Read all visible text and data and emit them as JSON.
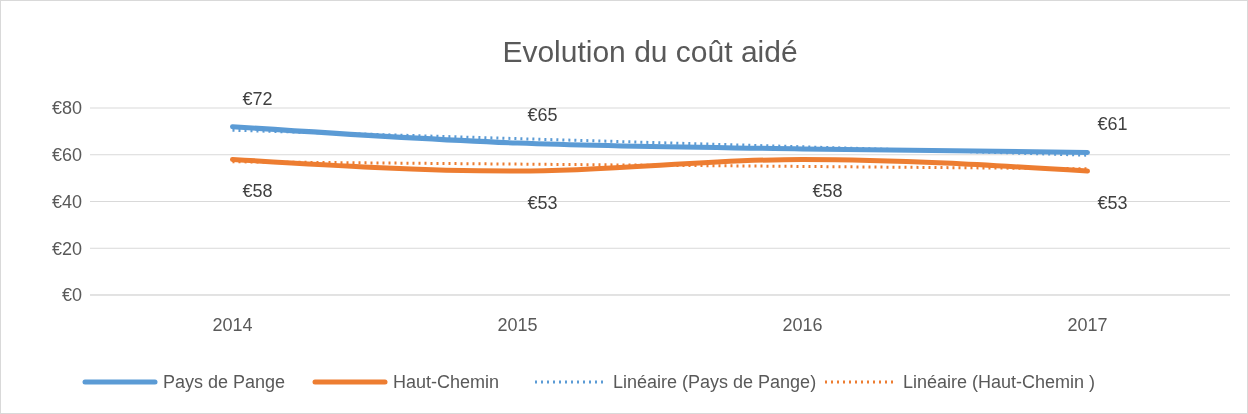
{
  "chart_data": {
    "type": "line",
    "title": "Evolution du coût aidé",
    "categories": [
      "2014",
      "2015",
      "2016",
      "2017"
    ],
    "series": [
      {
        "name": "Pays de Pange",
        "color": "#5b9bd5",
        "values": [
          72,
          65,
          62.5,
          61
        ],
        "value_labels": [
          "€72",
          "€65",
          null,
          "€61"
        ]
      },
      {
        "name": "Haut-Chemin",
        "color": "#ed7d31",
        "values": [
          58,
          53,
          58,
          53
        ],
        "value_labels": [
          "€58",
          "€53",
          "€58",
          "€53"
        ]
      },
      {
        "name": "Linéaire (Pays de Pange)",
        "color": "#5b9bd5",
        "values": [
          70.5,
          66.9,
          63.4,
          59.8
        ],
        "line_style": "dotted"
      },
      {
        "name": "Linéaire (Haut-Chemin )",
        "color": "#ed7d31",
        "values": [
          57,
          56,
          55,
          54
        ],
        "line_style": "dotted"
      }
    ],
    "ylim": [
      0,
      80
    ],
    "yticks": [
      {
        "value": 0,
        "label": "€0"
      },
      {
        "value": 20,
        "label": "€20"
      },
      {
        "value": 40,
        "label": "€40"
      },
      {
        "value": 60,
        "label": "€60"
      },
      {
        "value": 80,
        "label": "€80"
      }
    ],
    "grid": "y",
    "legend": "bottom",
    "line_style": "solid"
  }
}
